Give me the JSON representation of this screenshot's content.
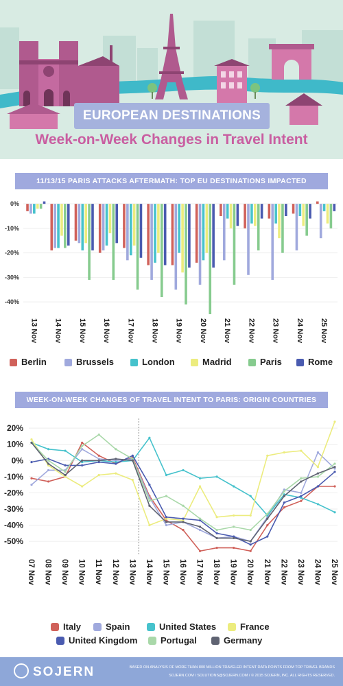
{
  "header": {
    "title": "EUROPEAN DESTINATIONS",
    "subtitle": "Week-on-Week Changes in Travel Intent"
  },
  "colors": {
    "hero_bg": "#d8ebe3",
    "banner": "#a5b2dd",
    "accent_pink": "#c95ea1",
    "footer": "#8ea7d8"
  },
  "chart_data": [
    {
      "type": "bar",
      "title": "11/13/15 PARIS ATTACKS AFTERMATH: TOP EU DESTINATIONS IMPACTED",
      "categories": [
        "13 Nov",
        "14 Nov",
        "15 Nov",
        "16 Nov",
        "17 Nov",
        "18 Nov",
        "19 Nov",
        "20 Nov",
        "21 Nov",
        "22 Nov",
        "23 Nov",
        "24 Nov",
        "25 Nov"
      ],
      "ylim": [
        -45,
        2
      ],
      "yticks": [
        0,
        -10,
        -20,
        -30,
        -40
      ],
      "ytick_labels": [
        "0%",
        "-10%",
        "-20%",
        "-30%",
        "-40%"
      ],
      "legend_position": "bottom",
      "series": [
        {
          "name": "Berlin",
          "color": "#d0615a",
          "values": [
            -3,
            -19,
            -15,
            -20,
            -18,
            -25,
            -25,
            -24,
            -5,
            -10,
            -6,
            -4,
            1
          ]
        },
        {
          "name": "Brussels",
          "color": "#a0a9dd",
          "values": [
            -4,
            -18,
            -16,
            -19,
            -23,
            -31,
            -35,
            -33,
            -23,
            -29,
            -31,
            -19,
            -14
          ]
        },
        {
          "name": "London",
          "color": "#46c2cc",
          "values": [
            -4,
            -18,
            -19,
            -17,
            -21,
            -24,
            -20,
            -23,
            -6,
            -8,
            -8,
            -5,
            -3
          ]
        },
        {
          "name": "Madrid",
          "color": "#ecec7e",
          "values": [
            -2,
            -13,
            -16,
            -12,
            -17,
            -20,
            -28,
            -20,
            -10,
            -9,
            -14,
            -9,
            -8
          ]
        },
        {
          "name": "Paris",
          "color": "#86cb8e",
          "values": [
            -2,
            -18,
            -31,
            -31,
            -35,
            -38,
            -41,
            -45,
            -33,
            -19,
            -20,
            -13,
            -10
          ]
        },
        {
          "name": "Rome",
          "color": "#4a5bb0",
          "values": [
            1,
            -17,
            -19,
            -16,
            -22,
            -25,
            -26,
            -26,
            -9,
            -6,
            -5,
            -6,
            -3
          ]
        }
      ]
    },
    {
      "type": "line",
      "title": "WEEK-ON-WEEK CHANGES OF TRAVEL INTENT TO PARIS: ORIGIN COUNTRIES",
      "x": [
        "07 Nov",
        "08 Nov",
        "09 Nov",
        "10 Nov",
        "11 Nov",
        "12 Nov",
        "13 Nov",
        "14 Nov",
        "15 Nov",
        "16 Nov",
        "17 Nov",
        "18 Nov",
        "19 Nov",
        "20 Nov",
        "21 Nov",
        "22 Nov",
        "23 Nov",
        "24 Nov",
        "25 Nov"
      ],
      "ylim": [
        -58,
        26
      ],
      "yticks": [
        20,
        10,
        0,
        -10,
        -20,
        -30,
        -40,
        -50
      ],
      "ytick_labels": [
        "20%",
        "10%",
        "0%",
        "-10%",
        "-20%",
        "-30%",
        "-40%",
        "-50%"
      ],
      "event_marker_x": "13 Nov",
      "legend_position": "bottom",
      "series": [
        {
          "name": "Italy",
          "color": "#d0615a",
          "values": [
            -11,
            -13,
            -10,
            11,
            3,
            -2,
            2,
            -22,
            -37,
            -43,
            -56,
            -54,
            -54,
            -56,
            -40,
            -29,
            -25,
            -16,
            -16
          ]
        },
        {
          "name": "Spain",
          "color": "#a0a9dd",
          "values": [
            -15,
            -6,
            -6,
            7,
            1,
            0,
            1,
            -23,
            -40,
            -38,
            -43,
            -48,
            -47,
            -50,
            -35,
            -18,
            -20,
            5,
            -5
          ]
        },
        {
          "name": "United States",
          "color": "#46c2cc",
          "values": [
            11,
            7,
            6,
            -1,
            0,
            -1,
            0,
            14,
            -9,
            -6,
            -11,
            -10,
            -16,
            -22,
            -34,
            -21,
            -23,
            -27,
            -32
          ]
        },
        {
          "name": "France",
          "color": "#ecec7e",
          "values": [
            13,
            -3,
            -10,
            -16,
            -9,
            -8,
            -12,
            -40,
            -36,
            -37,
            -16,
            -35,
            -34,
            -34,
            3,
            5,
            6,
            -4,
            24
          ]
        },
        {
          "name": "United Kingdom",
          "color": "#4a5bb0",
          "values": [
            -1,
            1,
            -3,
            -3,
            -1,
            -2,
            3,
            -15,
            -35,
            -36,
            -37,
            -45,
            -47,
            -52,
            -47,
            -26,
            -22,
            -16,
            -7
          ]
        },
        {
          "name": "Portugal",
          "color": "#a9d8a9",
          "values": [
            11,
            0,
            -7,
            9,
            16,
            7,
            1,
            -25,
            -22,
            -28,
            -36,
            -43,
            -41,
            -43,
            -33,
            -19,
            -11,
            -10,
            -2
          ]
        },
        {
          "name": "Germany",
          "color": "#5f6372",
          "values": [
            11,
            -2,
            -9,
            0,
            0,
            1,
            0,
            -28,
            -38,
            -38,
            -41,
            -48,
            -48,
            -50,
            -36,
            -22,
            -13,
            -8,
            -4
          ]
        }
      ]
    }
  ],
  "footer": {
    "logo": "SOJERN",
    "note_line1": "BASED ON ANALYSIS OF MORE THAN 800 MILLION TRAVELER INTENT DATA POINTS FROM TOP TRAVEL BRANDS",
    "note_line2": "SOJERN.COM   /   SOLUTIONS@SOJERN.COM   /   © 2015 SOJERN, INC. ALL RIGHTS RESERVED."
  }
}
